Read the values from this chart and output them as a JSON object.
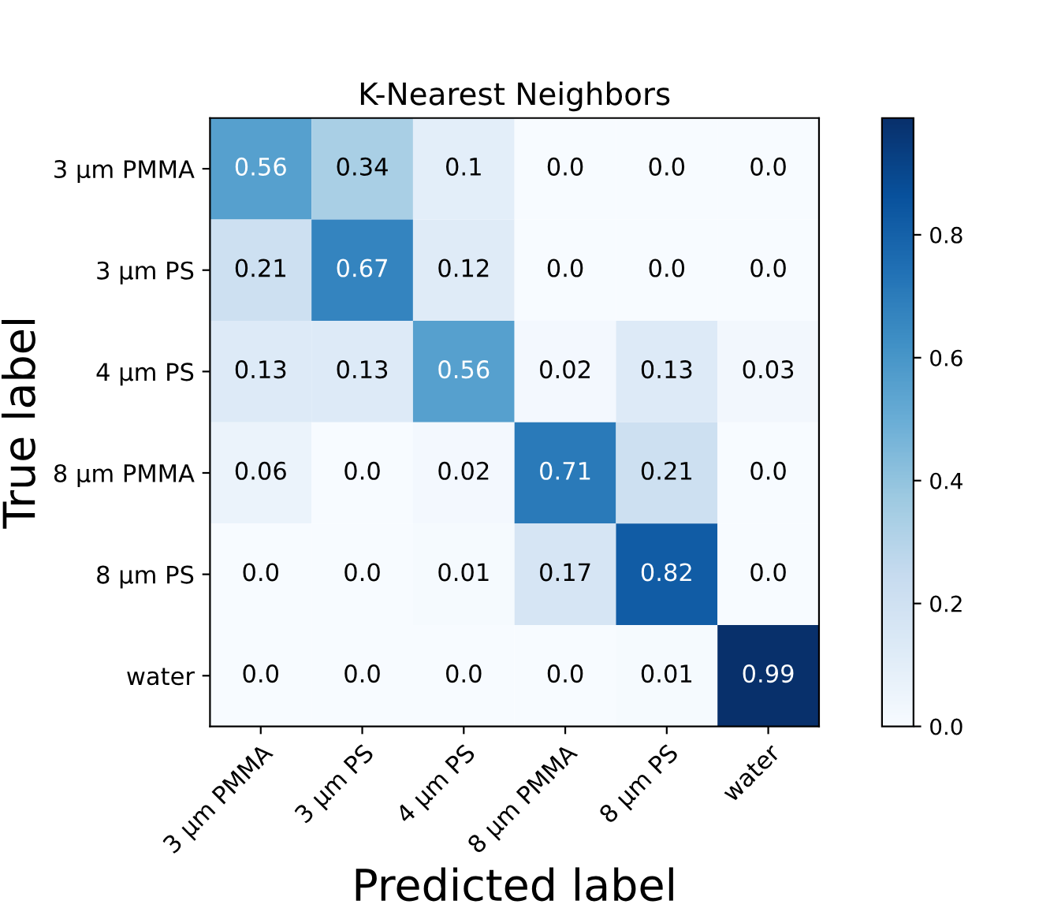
{
  "chart_data": {
    "type": "heatmap",
    "title": "K-Nearest Neighbors",
    "xlabel": "Predicted label",
    "ylabel": "True label",
    "categories": [
      "3 μm PMMA",
      "3 μm PS",
      "4 μm PS",
      "8 μm PMMA",
      "8 μm PS",
      "water"
    ],
    "y_categories": [
      "3 μm PMMA",
      "3 μm PS",
      "4 μm PS",
      "8 μm PMMA",
      "8 μm PS",
      "water"
    ],
    "cells": [
      [
        0.56,
        0.34,
        0.1,
        0.0,
        0.0,
        0.0
      ],
      [
        0.21,
        0.67,
        0.12,
        0.0,
        0.0,
        0.0
      ],
      [
        0.13,
        0.13,
        0.56,
        0.02,
        0.13,
        0.03
      ],
      [
        0.06,
        0.0,
        0.02,
        0.71,
        0.21,
        0.0
      ],
      [
        0.0,
        0.0,
        0.01,
        0.17,
        0.82,
        0.0
      ],
      [
        0.0,
        0.0,
        0.0,
        0.0,
        0.01,
        0.99
      ]
    ],
    "cell_labels": [
      [
        "0.56",
        "0.34",
        "0.1",
        "0.0",
        "0.0",
        "0.0"
      ],
      [
        "0.21",
        "0.67",
        "0.12",
        "0.0",
        "0.0",
        "0.0"
      ],
      [
        "0.13",
        "0.13",
        "0.56",
        "0.02",
        "0.13",
        "0.03"
      ],
      [
        "0.06",
        "0.0",
        "0.02",
        "0.71",
        "0.21",
        "0.0"
      ],
      [
        "0.0",
        "0.0",
        "0.01",
        "0.17",
        "0.82",
        "0.0"
      ],
      [
        "0.0",
        "0.0",
        "0.0",
        "0.0",
        "0.01",
        "0.99"
      ]
    ],
    "clim": [
      0,
      0.99
    ],
    "cticks": [
      {
        "value": 0,
        "label": "0.0"
      },
      0.2,
      0.4,
      0.6,
      0.8
    ]
  }
}
